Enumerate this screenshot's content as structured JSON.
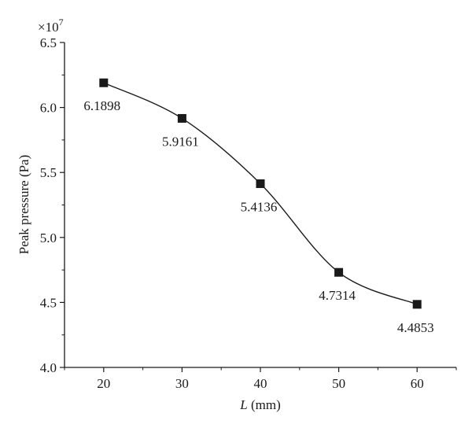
{
  "chart_data": {
    "type": "line",
    "x": [
      20,
      30,
      40,
      50,
      60
    ],
    "values": [
      6.1898,
      5.9161,
      5.4136,
      4.7314,
      4.4853
    ],
    "data_labels": [
      "6.1898",
      "5.9161",
      "5.4136",
      "4.7314",
      "4.4853"
    ],
    "xlabel_italic": "L",
    "xlabel_rest": " (mm)",
    "ylabel": "Peak pressure (Pa)",
    "scale_factor": "×10",
    "scale_exponent": "7",
    "xlim": [
      15,
      65
    ],
    "ylim": [
      4.0,
      6.5
    ],
    "xticks": [
      20,
      30,
      40,
      50,
      60
    ],
    "xtick_labels": [
      "20",
      "30",
      "40",
      "50",
      "60"
    ],
    "yticks": [
      4.0,
      4.5,
      5.0,
      5.5,
      6.0,
      6.5
    ],
    "ytick_labels": [
      "4.0",
      "4.5",
      "5.0",
      "5.5",
      "6.0",
      "6.5"
    ],
    "marker": "square",
    "line_color": "#1a1a1a",
    "grid": false,
    "legend": false
  }
}
